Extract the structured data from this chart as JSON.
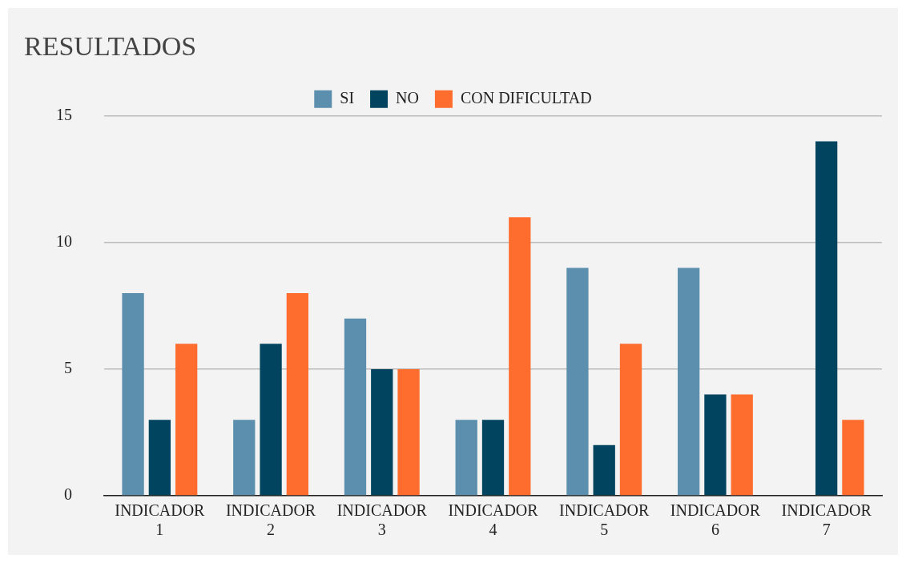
{
  "chart_data": {
    "type": "bar",
    "title": "RESULTADOS",
    "categories": [
      "INDICADOR 1",
      "INDICADOR 2",
      "INDICADOR 3",
      "INDICADOR 4",
      "INDICADOR 5",
      "INDICADOR 6",
      "INDICADOR 7"
    ],
    "series": [
      {
        "name": "SI",
        "color": "#5b8fad",
        "values": [
          8,
          3,
          7,
          3,
          9,
          9,
          0
        ]
      },
      {
        "name": "NO",
        "color": "#00445f",
        "values": [
          3,
          6,
          5,
          3,
          2,
          4,
          14
        ]
      },
      {
        "name": "CON DIFICULTAD",
        "color": "#ff6d2e",
        "values": [
          6,
          8,
          5,
          11,
          6,
          4,
          3
        ]
      }
    ],
    "ylim": [
      0,
      15
    ],
    "yticks": [
      0,
      5,
      10,
      15
    ],
    "grid": "y",
    "legend": "top"
  }
}
